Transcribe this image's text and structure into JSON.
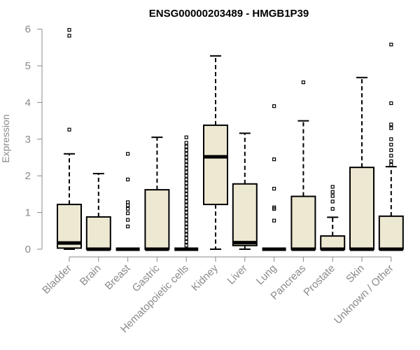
{
  "chart_data": {
    "type": "box",
    "title": "ENSG00000203489 - HMGB1P39",
    "xlabel": "",
    "ylabel": "Expression",
    "ylim": [
      0,
      6
    ],
    "yticks": [
      0,
      1,
      2,
      3,
      4,
      5,
      6
    ],
    "grid": false,
    "legend": "none",
    "categories": [
      "Bladder",
      "Brain",
      "Breast",
      "Gastric",
      "Hematopoietic cells",
      "Kidney",
      "Liver",
      "Lung",
      "Pancreas",
      "Prostate",
      "Skin",
      "Unknown / Other"
    ],
    "boxes": [
      {
        "category": "Bladder",
        "whisker_low": 0,
        "q1": 0.03,
        "median": 0.17,
        "q3": 1.22,
        "whisker_high": 2.6,
        "outliers": [
          3.26,
          5.82,
          5.98
        ]
      },
      {
        "category": "Brain",
        "whisker_low": 0,
        "q1": 0,
        "median": 0,
        "q3": 0.88,
        "whisker_high": 2.06,
        "outliers": []
      },
      {
        "category": "Breast",
        "whisker_low": 0,
        "q1": 0,
        "median": 0,
        "q3": 0,
        "whisker_high": 0,
        "outliers": [
          0.62,
          0.8,
          0.98,
          1.1,
          1.2,
          1.28,
          1.9,
          2.6
        ]
      },
      {
        "category": "Gastric",
        "whisker_low": 0,
        "q1": 0,
        "median": 0,
        "q3": 1.62,
        "whisker_high": 3.05,
        "outliers": []
      },
      {
        "category": "Hematopoietic cells",
        "whisker_low": 0,
        "q1": 0,
        "median": 0,
        "q3": 0,
        "whisker_high": 0,
        "outliers": [
          0.1,
          0.2,
          0.3,
          0.4,
          0.5,
          0.6,
          0.7,
          0.8,
          0.9,
          1.0,
          1.1,
          1.2,
          1.3,
          1.4,
          1.5,
          1.6,
          1.7,
          1.8,
          1.9,
          2.0,
          2.1,
          2.2,
          2.3,
          2.4,
          2.5,
          2.6,
          2.7,
          2.8,
          2.9,
          3.05
        ]
      },
      {
        "category": "Kidney",
        "whisker_low": 0,
        "q1": 1.22,
        "median": 2.52,
        "q3": 3.38,
        "whisker_high": 5.27,
        "outliers": []
      },
      {
        "category": "Liver",
        "whisker_low": 0,
        "q1": 0.1,
        "median": 0.18,
        "q3": 1.78,
        "whisker_high": 3.16,
        "outliers": []
      },
      {
        "category": "Lung",
        "whisker_low": 0,
        "q1": 0,
        "median": 0,
        "q3": 0,
        "whisker_high": 0,
        "outliers": [
          0.78,
          1.1,
          1.14,
          1.65,
          2.45,
          3.9
        ]
      },
      {
        "category": "Pancreas",
        "whisker_low": 0,
        "q1": 0,
        "median": 0,
        "q3": 1.44,
        "whisker_high": 3.5,
        "outliers": [
          4.55
        ]
      },
      {
        "category": "Prostate",
        "whisker_low": 0,
        "q1": 0,
        "median": 0,
        "q3": 0.36,
        "whisker_high": 0.87,
        "outliers": [
          1.1,
          1.3,
          1.45,
          1.56,
          1.7
        ]
      },
      {
        "category": "Skin",
        "whisker_low": 0,
        "q1": 0,
        "median": 0,
        "q3": 2.23,
        "whisker_high": 4.68,
        "outliers": []
      },
      {
        "category": "Unknown / Other",
        "whisker_low": 0,
        "q1": 0,
        "median": 0,
        "q3": 0.9,
        "whisker_high": 2.25,
        "outliers": [
          2.3,
          2.4,
          2.55,
          2.7,
          2.85,
          3.0,
          3.3,
          3.4,
          3.98,
          5.58
        ]
      }
    ]
  },
  "colors": {
    "box_fill": "#ede8d2",
    "box_stroke": "#000000",
    "axis": "#8a8a8a",
    "text": "#000000"
  }
}
